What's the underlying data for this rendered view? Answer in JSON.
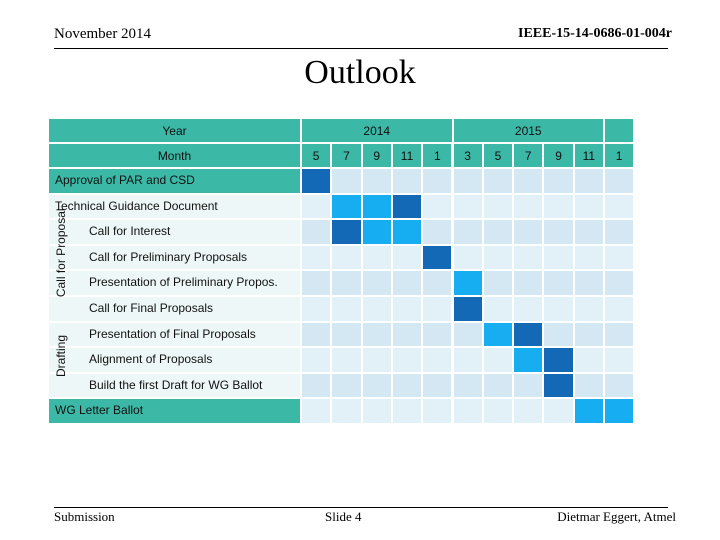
{
  "header": {
    "date": "November 2014",
    "doc_id": "IEEE-15-14-0686-01-004r"
  },
  "title": "Outlook",
  "table": {
    "year_label": "Year",
    "month_label": "Month",
    "years": [
      {
        "label": "2014"
      },
      {
        "label": "2015"
      },
      {
        "label": ""
      }
    ],
    "months": [
      "5",
      "7",
      "9",
      "11",
      "1",
      "3",
      "5",
      "7",
      "9",
      "11",
      "1"
    ],
    "groups": [
      {
        "label": "Call for Proposal"
      },
      {
        "label": "Drafting"
      }
    ],
    "rows": [
      {
        "label": "Approval of PAR and CSD",
        "cells": [
          3,
          0,
          0,
          0,
          0,
          0,
          0,
          0,
          0,
          0,
          0
        ]
      },
      {
        "label": "Technical Guidance Document",
        "cells": [
          0,
          2,
          2,
          3,
          0,
          0,
          0,
          0,
          0,
          0,
          0
        ]
      },
      {
        "label": "Call for Interest",
        "cells": [
          0,
          3,
          2,
          2,
          0,
          0,
          0,
          0,
          0,
          0,
          0
        ]
      },
      {
        "label": "Call for Preliminary Proposals",
        "cells": [
          0,
          0,
          0,
          0,
          3,
          0,
          0,
          0,
          0,
          0,
          0
        ]
      },
      {
        "label": "Presentation of Preliminary Propos.",
        "cells": [
          0,
          0,
          0,
          0,
          0,
          2,
          0,
          0,
          0,
          0,
          0
        ]
      },
      {
        "label": "Call for Final Proposals",
        "cells": [
          0,
          0,
          0,
          0,
          0,
          3,
          0,
          0,
          0,
          0,
          0
        ]
      },
      {
        "label": "Presentation of Final Proposals",
        "cells": [
          0,
          0,
          0,
          0,
          0,
          0,
          2,
          3,
          0,
          0,
          0
        ]
      },
      {
        "label": "Alignment of Proposals",
        "cells": [
          0,
          0,
          0,
          0,
          0,
          0,
          0,
          2,
          3,
          0,
          0
        ]
      },
      {
        "label": "Build the first Draft for WG Ballot",
        "cells": [
          0,
          0,
          0,
          0,
          0,
          0,
          0,
          0,
          3,
          0,
          0
        ]
      },
      {
        "label": "WG Letter Ballot",
        "cells": [
          0,
          0,
          0,
          0,
          0,
          0,
          0,
          0,
          0,
          2,
          2
        ]
      }
    ]
  },
  "colors": {
    "teal": "#3cb8a6",
    "light_row": "#e2f1f8",
    "light_row_alt": "#d3e8f2",
    "bright": "#16aef0",
    "dark": "#1369b5",
    "blank_row": "#edf7f7"
  },
  "footer": {
    "left": "Submission",
    "center": "Slide 4",
    "right": "Dietmar Eggert, Atmel"
  }
}
